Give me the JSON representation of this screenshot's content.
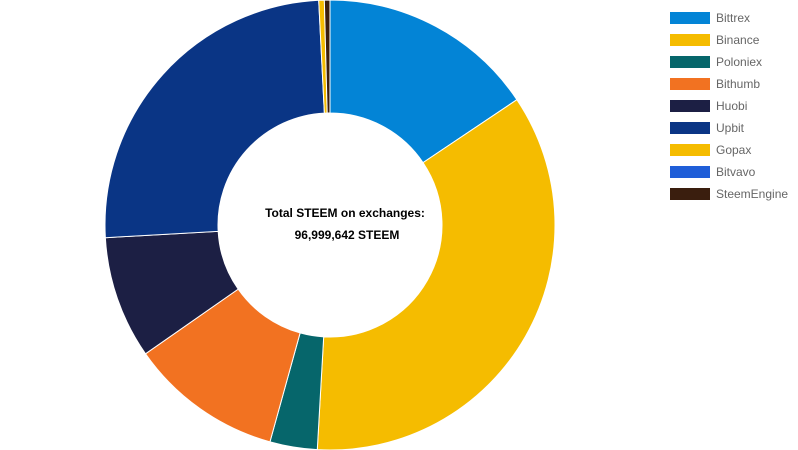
{
  "chart_data": {
    "type": "pie",
    "variant": "donut",
    "center_text": {
      "line1": "Total STEEM on exchanges:",
      "line2": "96,999,642 STEEM"
    },
    "legend_position": "top-right",
    "series": [
      {
        "name": "Bittrex",
        "value": 15.6,
        "color": "#0384d6"
      },
      {
        "name": "Binance",
        "value": 35.3,
        "color": "#f5bc00"
      },
      {
        "name": "Poloniex",
        "value": 3.4,
        "color": "#06666b"
      },
      {
        "name": "Bithumb",
        "value": 11.0,
        "color": "#f27221"
      },
      {
        "name": "Huobi",
        "value": 8.8,
        "color": "#1c1f44"
      },
      {
        "name": "Upbit",
        "value": 25.1,
        "color": "#0a3585"
      },
      {
        "name": "Gopax",
        "value": 0.4,
        "color": "#f5bc00"
      },
      {
        "name": "Bitvavo",
        "value": 0.0,
        "color": "#1f5ed8"
      },
      {
        "name": "SteemEngine",
        "value": 0.4,
        "color": "#3a1e0e"
      }
    ]
  }
}
